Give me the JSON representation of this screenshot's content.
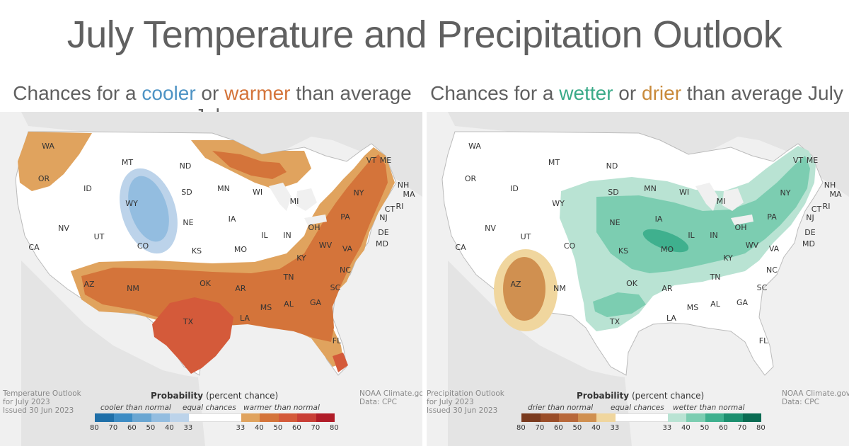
{
  "title": "July Temperature and Precipitation Outlook",
  "left": {
    "subtitle_prefix": "Chances for a ",
    "subtitle_word1": "cooler",
    "subtitle_or": " or ",
    "subtitle_word2": "warmer",
    "subtitle_suffix": " than average July",
    "word1_color": "#4e93c4",
    "word2_color": "#d4743a",
    "corner_left": [
      "Temperature Outlook",
      "for July 2023",
      "Issued 30 Jun 2023"
    ],
    "corner_right": [
      "NOAA Climate.gov",
      "Data: CPC"
    ],
    "legend_title_bold": "Probability",
    "legend_title_rest": " (percent chance)",
    "legend_cat_low": "cooler than normal",
    "legend_cat_mid": "equal chances",
    "legend_cat_high": "warmer than normal",
    "legend_ticks": [
      "80",
      "70",
      "60",
      "50",
      "40",
      "33",
      "33",
      "40",
      "50",
      "60",
      "70",
      "80"
    ],
    "legend_colors": [
      "#1f6fa8",
      "#3d8cc4",
      "#6aa6d2",
      "#93bde0",
      "#bcd3ea",
      "#ffffff",
      "#ffffff",
      "#e0a35e",
      "#d4743a",
      "#d45a3a",
      "#c93f36",
      "#b01c28"
    ],
    "states": [
      {
        "abbr": "WA"
      },
      {
        "abbr": "OR"
      },
      {
        "abbr": "CA"
      },
      {
        "abbr": "NV"
      },
      {
        "abbr": "ID"
      },
      {
        "abbr": "MT"
      },
      {
        "abbr": "WY"
      },
      {
        "abbr": "UT"
      },
      {
        "abbr": "AZ"
      },
      {
        "abbr": "CO"
      },
      {
        "abbr": "NM"
      },
      {
        "abbr": "ND"
      },
      {
        "abbr": "SD"
      },
      {
        "abbr": "NE"
      },
      {
        "abbr": "KS"
      },
      {
        "abbr": "OK"
      },
      {
        "abbr": "TX"
      },
      {
        "abbr": "MN"
      },
      {
        "abbr": "IA"
      },
      {
        "abbr": "MO"
      },
      {
        "abbr": "AR"
      },
      {
        "abbr": "LA"
      },
      {
        "abbr": "WI"
      },
      {
        "abbr": "IL"
      },
      {
        "abbr": "MS"
      },
      {
        "abbr": "MI"
      },
      {
        "abbr": "IN"
      },
      {
        "abbr": "KY"
      },
      {
        "abbr": "TN"
      },
      {
        "abbr": "AL"
      },
      {
        "abbr": "OH"
      },
      {
        "abbr": "GA"
      },
      {
        "abbr": "FL"
      },
      {
        "abbr": "SC"
      },
      {
        "abbr": "NC"
      },
      {
        "abbr": "VA"
      },
      {
        "abbr": "WV"
      },
      {
        "abbr": "PA"
      },
      {
        "abbr": "NY"
      },
      {
        "abbr": "MD"
      },
      {
        "abbr": "DE"
      },
      {
        "abbr": "NJ"
      },
      {
        "abbr": "CT"
      },
      {
        "abbr": "RI"
      },
      {
        "abbr": "MA"
      },
      {
        "abbr": "VT"
      },
      {
        "abbr": "NH"
      },
      {
        "abbr": "ME"
      }
    ]
  },
  "right": {
    "subtitle_prefix": "Chances for a ",
    "subtitle_word1": "wetter",
    "subtitle_or": " or ",
    "subtitle_word2": "drier",
    "subtitle_suffix": " than average July",
    "word1_color": "#3aaa88",
    "word2_color": "#c98a3a",
    "corner_left": [
      "Precipitation Outlook",
      "for July 2023",
      "Issued 30 Jun 2023"
    ],
    "corner_right": [
      "NOAA Climate.gov",
      "Data: CPC"
    ],
    "legend_title_bold": "Probability",
    "legend_title_rest": " (percent chance)",
    "legend_cat_low": "drier than normal",
    "legend_cat_mid": "equal chances",
    "legend_cat_high": "wetter than normal",
    "legend_ticks": [
      "80",
      "70",
      "60",
      "50",
      "40",
      "33",
      "33",
      "40",
      "50",
      "60",
      "70",
      "80"
    ],
    "legend_colors": [
      "#7a3a1e",
      "#9a4d28",
      "#b8683a",
      "#d09050",
      "#f0d69e",
      "#ffffff",
      "#ffffff",
      "#b9e3d3",
      "#7ccdb1",
      "#3fb08e",
      "#1c8f6f",
      "#0a6b52"
    ],
    "states": [
      {
        "abbr": "WA"
      },
      {
        "abbr": "OR"
      },
      {
        "abbr": "CA"
      },
      {
        "abbr": "NV"
      },
      {
        "abbr": "ID"
      },
      {
        "abbr": "MT"
      },
      {
        "abbr": "WY"
      },
      {
        "abbr": "UT"
      },
      {
        "abbr": "AZ"
      },
      {
        "abbr": "CO"
      },
      {
        "abbr": "NM"
      },
      {
        "abbr": "ND"
      },
      {
        "abbr": "SD"
      },
      {
        "abbr": "NE"
      },
      {
        "abbr": "KS"
      },
      {
        "abbr": "OK"
      },
      {
        "abbr": "TX"
      },
      {
        "abbr": "MN"
      },
      {
        "abbr": "IA"
      },
      {
        "abbr": "MO"
      },
      {
        "abbr": "AR"
      },
      {
        "abbr": "LA"
      },
      {
        "abbr": "WI"
      },
      {
        "abbr": "IL"
      },
      {
        "abbr": "MS"
      },
      {
        "abbr": "MI"
      },
      {
        "abbr": "IN"
      },
      {
        "abbr": "KY"
      },
      {
        "abbr": "TN"
      },
      {
        "abbr": "AL"
      },
      {
        "abbr": "OH"
      },
      {
        "abbr": "GA"
      },
      {
        "abbr": "FL"
      },
      {
        "abbr": "SC"
      },
      {
        "abbr": "NC"
      },
      {
        "abbr": "VA"
      },
      {
        "abbr": "WV"
      },
      {
        "abbr": "PA"
      },
      {
        "abbr": "NY"
      },
      {
        "abbr": "MD"
      },
      {
        "abbr": "DE"
      },
      {
        "abbr": "NJ"
      },
      {
        "abbr": "CT"
      },
      {
        "abbr": "RI"
      },
      {
        "abbr": "MA"
      },
      {
        "abbr": "VT"
      },
      {
        "abbr": "NH"
      },
      {
        "abbr": "ME"
      }
    ]
  }
}
